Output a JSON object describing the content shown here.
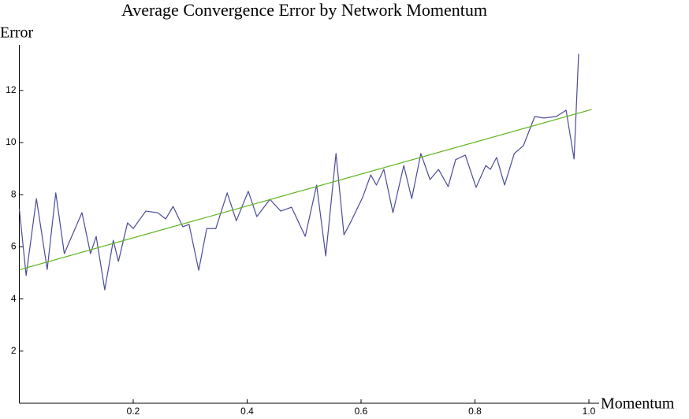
{
  "chart_data": {
    "type": "line",
    "title": "Average Convergence Error by Network Momentum",
    "x_label": "Momentum",
    "y_label": "Error",
    "xlim": [
      0,
      1.02
    ],
    "ylim": [
      0,
      13.8
    ],
    "xticks": [
      0.2,
      0.4,
      0.6,
      0.8,
      {
        "value": 1,
        "label": "1.0"
      }
    ],
    "yticks": [
      2,
      4,
      6,
      8,
      10,
      12
    ],
    "series": [
      {
        "color": "#4b4b9a",
        "x": [
          0,
          0.012,
          0.03,
          0.049,
          0.064,
          0.079,
          0.11,
          0.125,
          0.135,
          0.15,
          0.165,
          0.174,
          0.19,
          0.2,
          0.222,
          0.243,
          0.257,
          0.27,
          0.287,
          0.298,
          0.315,
          0.329,
          0.345,
          0.365,
          0.381,
          0.402,
          0.417,
          0.44,
          0.459,
          0.478,
          0.502,
          0.522,
          0.538,
          0.556,
          0.57,
          0.583,
          0.603,
          0.617,
          0.627,
          0.64,
          0.656,
          0.675,
          0.689,
          0.705,
          0.721,
          0.736,
          0.753,
          0.766,
          0.783,
          0.802,
          0.819,
          0.827,
          0.838,
          0.852,
          0.869,
          0.885,
          0.905,
          0.921,
          0.943,
          0.96,
          0.974,
          0.982
        ],
        "values": [
          7.46,
          4.9,
          7.85,
          5.13,
          8.07,
          5.74,
          7.31,
          5.74,
          6.4,
          4.35,
          6.25,
          5.44,
          6.92,
          6.7,
          7.37,
          7.31,
          7.07,
          7.55,
          6.77,
          6.86,
          5.1,
          6.7,
          6.7,
          8.07,
          7.0,
          8.13,
          7.16,
          7.82,
          7.37,
          7.52,
          6.4,
          8.37,
          5.65,
          9.58,
          6.46,
          7.0,
          7.91,
          8.76,
          8.37,
          8.97,
          7.31,
          9.12,
          7.85,
          9.58,
          8.58,
          8.97,
          8.31,
          9.34,
          9.52,
          8.28,
          9.12,
          8.97,
          9.43,
          8.37,
          9.58,
          9.88,
          11.0,
          10.94,
          11.0,
          11.24,
          9.37,
          13.4
        ]
      },
      {
        "color": "#5fb31f",
        "x": [
          0,
          1.005
        ],
        "values": [
          5.12,
          11.27
        ]
      }
    ]
  }
}
